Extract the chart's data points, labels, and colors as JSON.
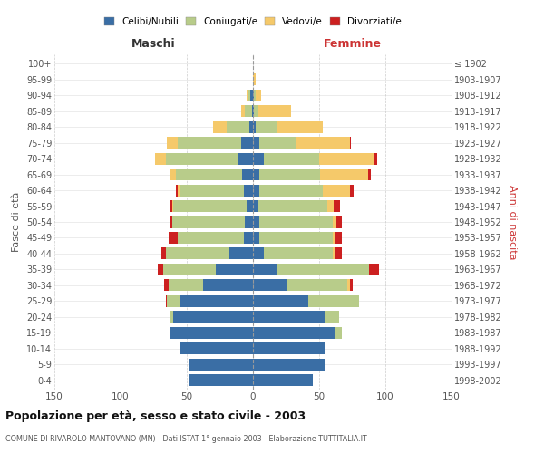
{
  "age_groups": [
    "100+",
    "95-99",
    "90-94",
    "85-89",
    "80-84",
    "75-79",
    "70-74",
    "65-69",
    "60-64",
    "55-59",
    "50-54",
    "45-49",
    "40-44",
    "35-39",
    "30-34",
    "25-29",
    "20-24",
    "15-19",
    "10-14",
    "5-9",
    "0-4"
  ],
  "birth_years": [
    "≤ 1902",
    "1903-1907",
    "1908-1912",
    "1913-1917",
    "1918-1922",
    "1923-1927",
    "1928-1932",
    "1933-1937",
    "1938-1942",
    "1943-1947",
    "1948-1952",
    "1953-1957",
    "1958-1962",
    "1963-1967",
    "1968-1972",
    "1973-1977",
    "1978-1982",
    "1983-1987",
    "1988-1992",
    "1993-1997",
    "1998-2002"
  ],
  "maschi_celibi": [
    0,
    0,
    2,
    1,
    3,
    9,
    11,
    8,
    7,
    5,
    6,
    7,
    18,
    28,
    38,
    55,
    60,
    62,
    55,
    48,
    48
  ],
  "maschi_coniugati": [
    0,
    0,
    2,
    5,
    17,
    48,
    55,
    50,
    48,
    55,
    55,
    50,
    48,
    40,
    26,
    10,
    2,
    0,
    0,
    0,
    0
  ],
  "maschi_vedovi": [
    0,
    0,
    1,
    3,
    10,
    8,
    8,
    4,
    2,
    1,
    0,
    0,
    0,
    0,
    0,
    0,
    0,
    0,
    0,
    0,
    0
  ],
  "maschi_divorziati": [
    0,
    0,
    0,
    0,
    0,
    0,
    0,
    1,
    1,
    1,
    2,
    7,
    3,
    4,
    3,
    1,
    1,
    0,
    0,
    0,
    0
  ],
  "femmine_nubili": [
    0,
    0,
    1,
    1,
    2,
    5,
    8,
    5,
    5,
    4,
    5,
    5,
    8,
    18,
    25,
    42,
    55,
    62,
    55,
    55,
    45
  ],
  "femmine_coniugate": [
    0,
    0,
    1,
    3,
    16,
    28,
    42,
    46,
    48,
    52,
    55,
    55,
    52,
    70,
    46,
    38,
    10,
    5,
    0,
    0,
    0
  ],
  "femmine_vedove": [
    0,
    2,
    4,
    25,
    35,
    40,
    42,
    36,
    20,
    5,
    3,
    2,
    2,
    0,
    2,
    0,
    0,
    0,
    0,
    0,
    0
  ],
  "femmine_divorziate": [
    0,
    0,
    0,
    0,
    0,
    1,
    2,
    2,
    3,
    5,
    4,
    5,
    5,
    7,
    2,
    0,
    0,
    0,
    0,
    0,
    0
  ],
  "color_celibi": "#3a6ea5",
  "color_coniugati": "#b8cc8a",
  "color_vedovi": "#f5c96a",
  "color_divorziati": "#cc2020",
  "xlim": 150,
  "title": "Popolazione per età, sesso e stato civile - 2003",
  "subtitle": "COMUNE DI RIVAROLO MANTOVANO (MN) - Dati ISTAT 1° gennaio 2003 - Elaborazione TUTTITALIA.IT",
  "ylabel_left": "Fasce di età",
  "ylabel_right": "Anni di nascita",
  "legend_labels": [
    "Celibi/Nubili",
    "Coniugati/e",
    "Vedovi/e",
    "Divorziati/e"
  ],
  "maschi_label": "Maschi",
  "femmine_label": "Femmine",
  "bg_color": "#ffffff",
  "grid_color": "#cccccc"
}
